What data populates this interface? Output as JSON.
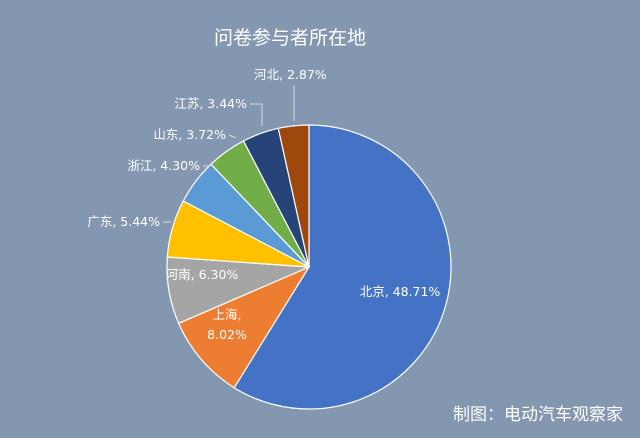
{
  "chart_data": {
    "type": "pie",
    "title": "问卷参与者所在地",
    "credit": "制图：电动汽车观察家",
    "slices": [
      {
        "name": "北京",
        "value": 48.71,
        "label": "北京, 48.71%",
        "color": "#4472c4"
      },
      {
        "name": "上海",
        "value": 8.02,
        "label": "上海,\n8.02%",
        "color": "#ed7d31"
      },
      {
        "name": "河南",
        "value": 6.3,
        "label": "河南, 6.30%",
        "color": "#a5a5a5"
      },
      {
        "name": "广东",
        "value": 5.44,
        "label": "广东, 5.44%",
        "color": "#ffc000"
      },
      {
        "name": "浙江",
        "value": 4.3,
        "label": "浙江, 4.30%",
        "color": "#5b9bd5"
      },
      {
        "name": "山东",
        "value": 3.72,
        "label": "山东, 3.72%",
        "color": "#70ad47"
      },
      {
        "name": "江苏",
        "value": 3.44,
        "label": "江苏, 3.44%",
        "color": "#264478"
      },
      {
        "name": "河北",
        "value": 2.87,
        "label": "河北, 2.87%",
        "color": "#9e480e"
      }
    ]
  }
}
